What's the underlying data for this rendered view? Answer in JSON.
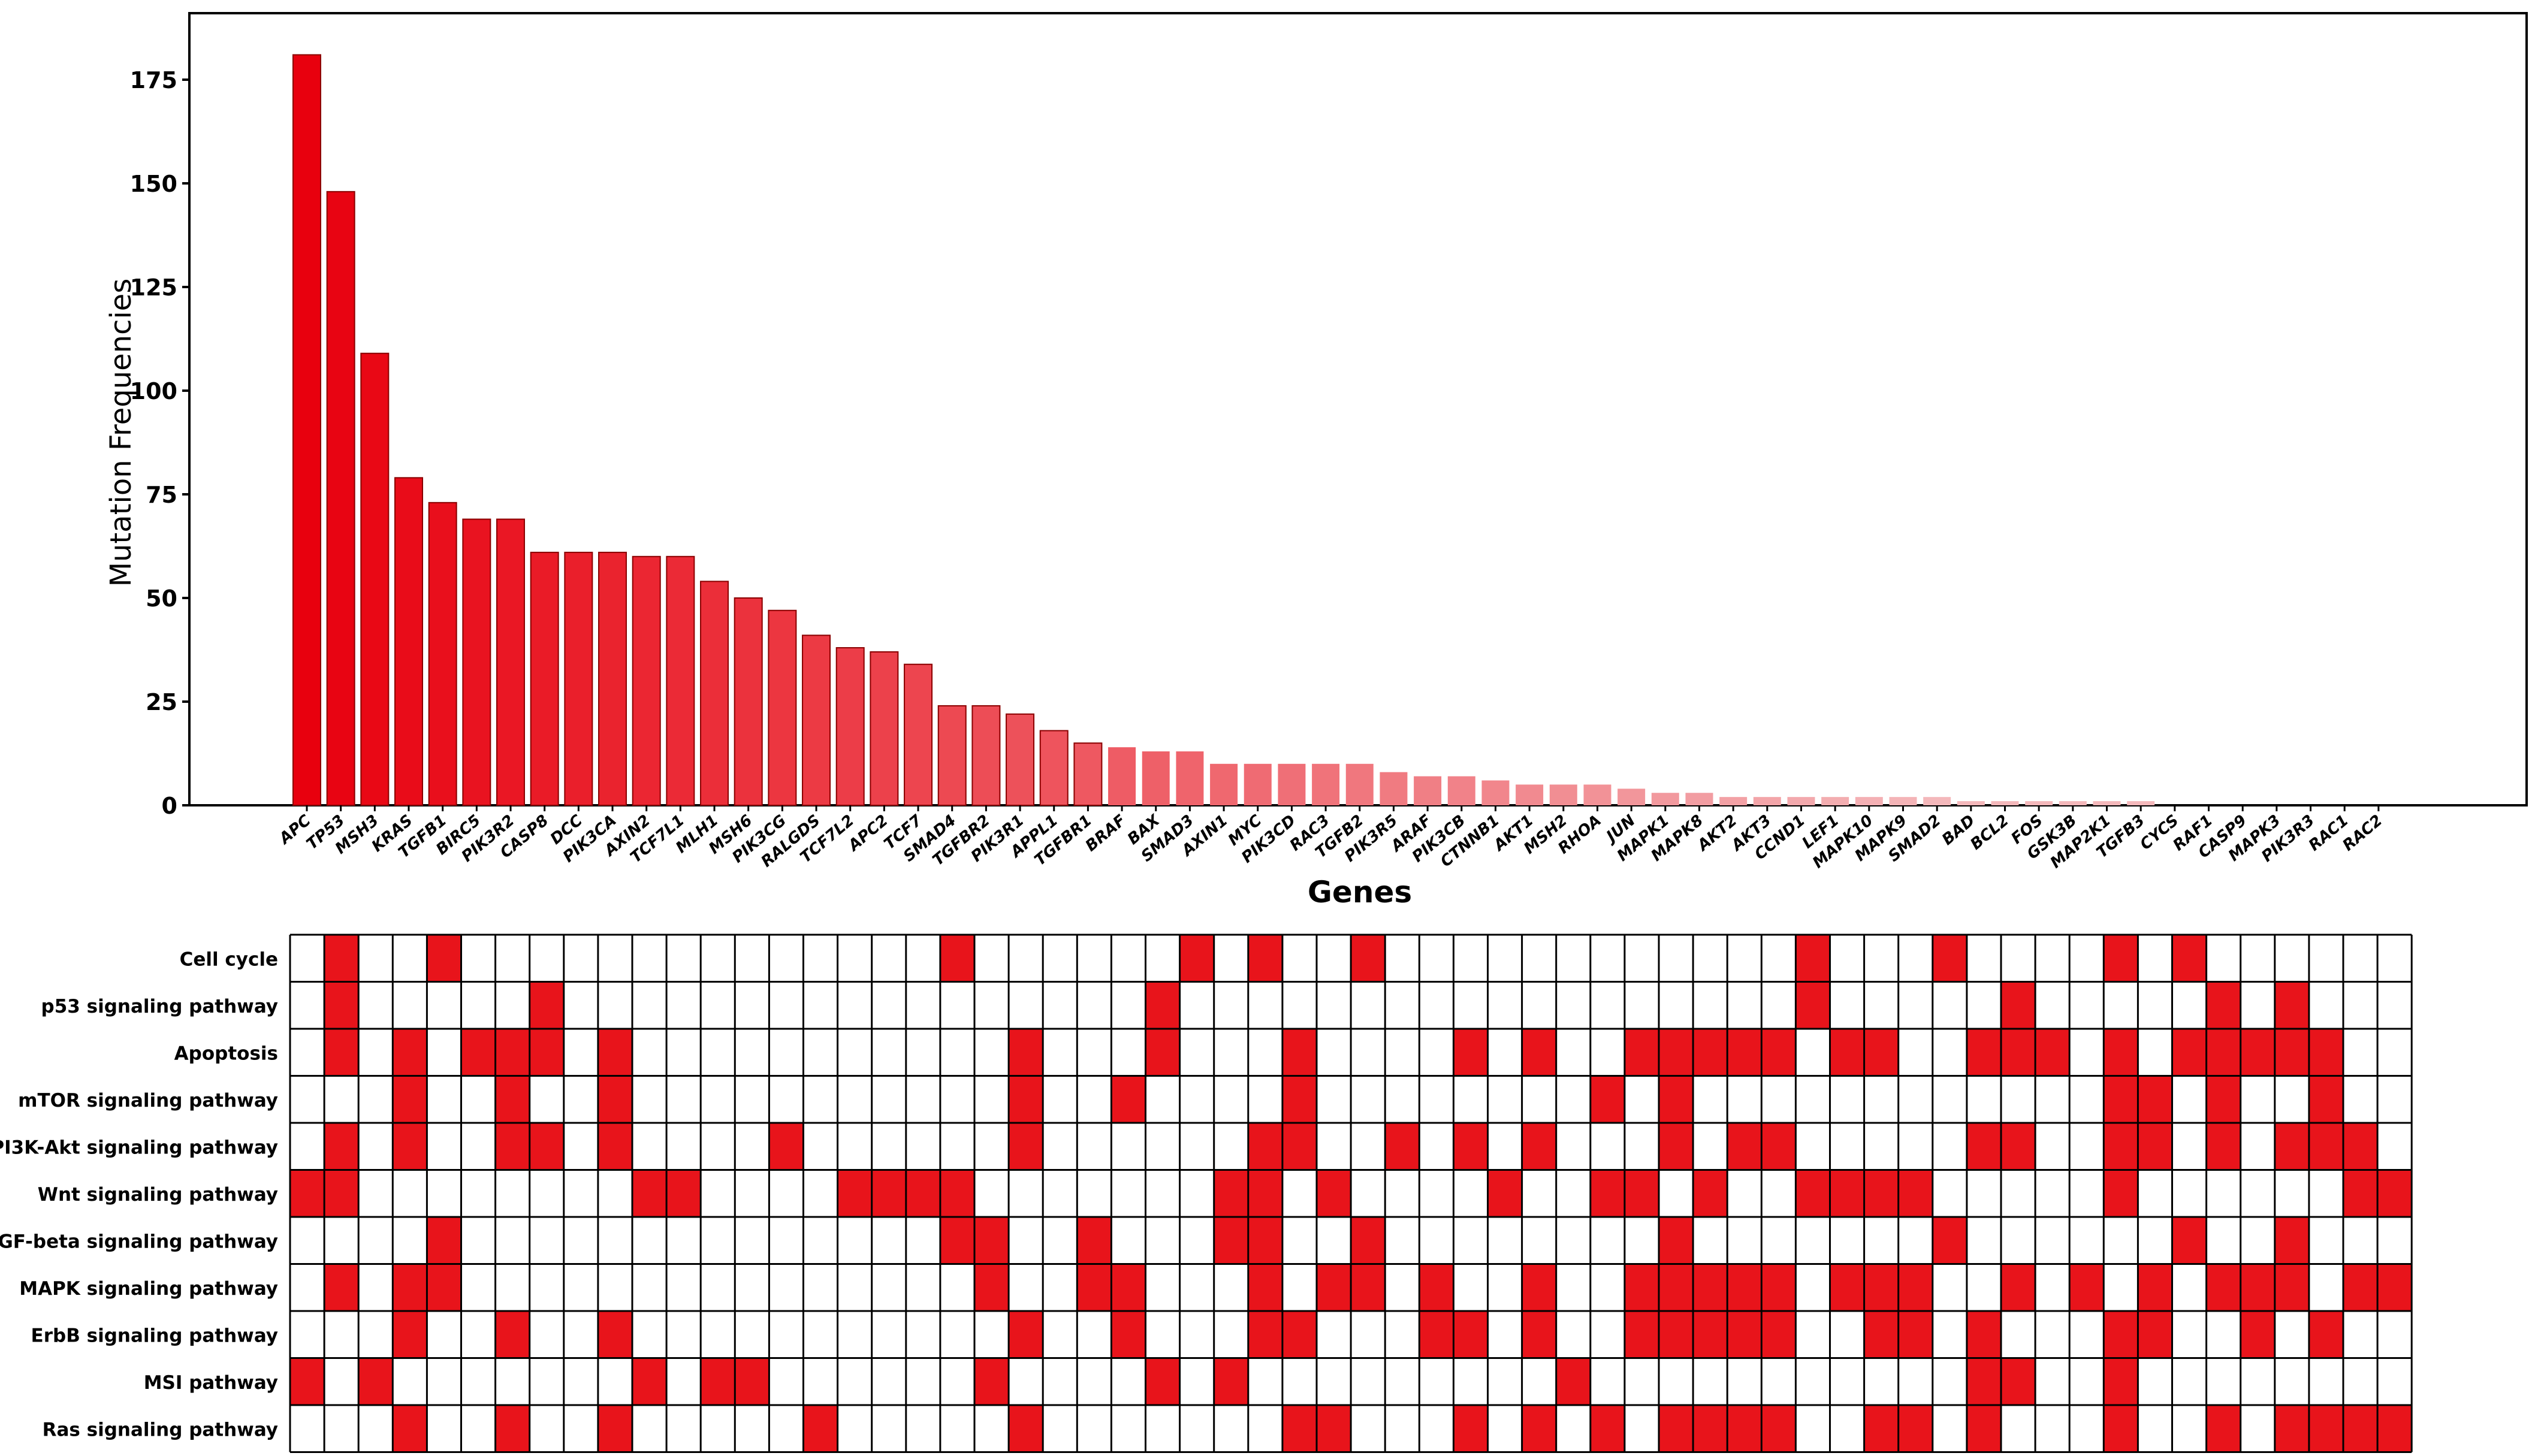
{
  "colors": {
    "bar_top": "#e8000e",
    "bar_faint": "#f4b8bb",
    "bar_outline": "#8a0000",
    "cell_on": "#e8141b",
    "cell_off": "#ffffff",
    "grid": "#000000"
  },
  "chart_data": [
    {
      "type": "bar",
      "title": "",
      "xlabel": "Genes",
      "ylabel": "Mutation Frequencies",
      "ylim": [
        0,
        185
      ],
      "yticks": [
        0,
        25,
        50,
        75,
        100,
        125,
        150,
        175
      ],
      "grid": false,
      "categories": [
        "APC",
        "TP53",
        "MSH3",
        "KRAS",
        "TGFB1",
        "BIRC5",
        "PIK3R2",
        "CASP8",
        "DCC",
        "PIK3CA",
        "AXIN2",
        "TCF7L1",
        "MLH1",
        "MSH6",
        "PIK3CG",
        "RALGDS",
        "TCF7L2",
        "APC2",
        "TCF7",
        "SMAD4",
        "TGFBR2",
        "PIK3R1",
        "APPL1",
        "TGFBR1",
        "BRAF",
        "BAX",
        "SMAD3",
        "AXIN1",
        "MYC",
        "PIK3CD",
        "RAC3",
        "TGFB2",
        "PIK3R5",
        "ARAF",
        "PIK3CB",
        "CTNNB1",
        "AKT1",
        "MSH2",
        "RHOA",
        "JUN",
        "MAPK1",
        "MAPK8",
        "AKT2",
        "AKT3",
        "CCND1",
        "LEF1",
        "MAPK10",
        "MAPK9",
        "SMAD2",
        "BAD",
        "BCL2",
        "FOS",
        "GSK3B",
        "MAP2K1",
        "TGFB3",
        "CYCS",
        "RAF1",
        "CASP9",
        "MAPK3",
        "PIK3R3",
        "RAC1",
        "RAC2"
      ],
      "values": [
        181,
        148,
        109,
        79,
        73,
        69,
        69,
        61,
        61,
        61,
        60,
        60,
        54,
        50,
        47,
        41,
        38,
        37,
        34,
        24,
        24,
        22,
        18,
        15,
        14,
        13,
        13,
        10,
        10,
        10,
        10,
        10,
        8,
        7,
        7,
        6,
        5,
        5,
        5,
        4,
        3,
        3,
        2,
        2,
        2,
        2,
        2,
        2,
        2,
        1,
        1,
        1,
        1,
        1,
        1,
        0,
        0,
        0,
        0,
        0,
        0,
        0
      ]
    },
    {
      "type": "heatmap",
      "title": "",
      "rows": [
        "Cell cycle",
        "p53 signaling pathway",
        "Apoptosis",
        "mTOR signaling pathway",
        "PI3K-Akt signaling pathway",
        "Wnt signaling pathway",
        "TGF-beta signaling pathway",
        "MAPK signaling pathway",
        "ErbB signaling pathway",
        "MSI pathway",
        "Ras signaling pathway"
      ],
      "columns": [
        "APC",
        "TP53",
        "MSH3",
        "KRAS",
        "TGFB1",
        "BIRC5",
        "PIK3R2",
        "CASP8",
        "DCC",
        "PIK3CA",
        "AXIN2",
        "TCF7L1",
        "MLH1",
        "MSH6",
        "PIK3CG",
        "RALGDS",
        "TCF7L2",
        "APC2",
        "TCF7",
        "SMAD4",
        "TGFBR2",
        "PIK3R1",
        "APPL1",
        "TGFBR1",
        "BRAF",
        "BAX",
        "SMAD3",
        "AXIN1",
        "MYC",
        "PIK3CD",
        "RAC3",
        "TGFB2",
        "PIK3R5",
        "ARAF",
        "PIK3CB",
        "CTNNB1",
        "AKT1",
        "MSH2",
        "RHOA",
        "JUN",
        "MAPK1",
        "MAPK8",
        "AKT2",
        "AKT3",
        "CCND1",
        "LEF1",
        "MAPK10",
        "MAPK9",
        "SMAD2",
        "BAD",
        "BCL2",
        "FOS",
        "GSK3B",
        "MAP2K1",
        "TGFB3",
        "CYCS",
        "RAF1",
        "CASP9",
        "MAPK3",
        "PIK3R3",
        "RAC1",
        "RAC2"
      ],
      "filled": [
        [
          1,
          4,
          19,
          26,
          28,
          31,
          44,
          48,
          53,
          55
        ],
        [
          1,
          7,
          25,
          44,
          50,
          56,
          58
        ],
        [
          1,
          3,
          5,
          6,
          7,
          9,
          21,
          25,
          29,
          34,
          36,
          39,
          40,
          41,
          42,
          43,
          45,
          46,
          49,
          50,
          51,
          53,
          55,
          56,
          57,
          58,
          59
        ],
        [
          3,
          6,
          9,
          21,
          24,
          29,
          38,
          40,
          53,
          54,
          56,
          59
        ],
        [
          1,
          3,
          6,
          7,
          9,
          14,
          21,
          28,
          29,
          32,
          34,
          36,
          40,
          42,
          43,
          49,
          50,
          53,
          54,
          56,
          58,
          59,
          60
        ],
        [
          0,
          1,
          10,
          11,
          16,
          17,
          18,
          19,
          27,
          28,
          30,
          35,
          38,
          39,
          41,
          44,
          45,
          46,
          47,
          53,
          60,
          61
        ],
        [
          4,
          19,
          20,
          23,
          27,
          28,
          31,
          40,
          48,
          55,
          58
        ],
        [
          1,
          3,
          4,
          20,
          23,
          24,
          28,
          30,
          31,
          33,
          36,
          39,
          40,
          41,
          42,
          43,
          45,
          46,
          47,
          50,
          52,
          54,
          56,
          57,
          58,
          60,
          61
        ],
        [
          3,
          6,
          9,
          21,
          24,
          28,
          29,
          33,
          34,
          36,
          39,
          40,
          41,
          42,
          43,
          46,
          47,
          49,
          53,
          54,
          57,
          59
        ],
        [
          0,
          2,
          10,
          12,
          13,
          20,
          25,
          27,
          37,
          49,
          50,
          53
        ],
        [
          3,
          6,
          9,
          15,
          21,
          29,
          30,
          34,
          36,
          38,
          40,
          41,
          42,
          43,
          46,
          47,
          49,
          53,
          56,
          58,
          59,
          60,
          61
        ]
      ]
    }
  ]
}
